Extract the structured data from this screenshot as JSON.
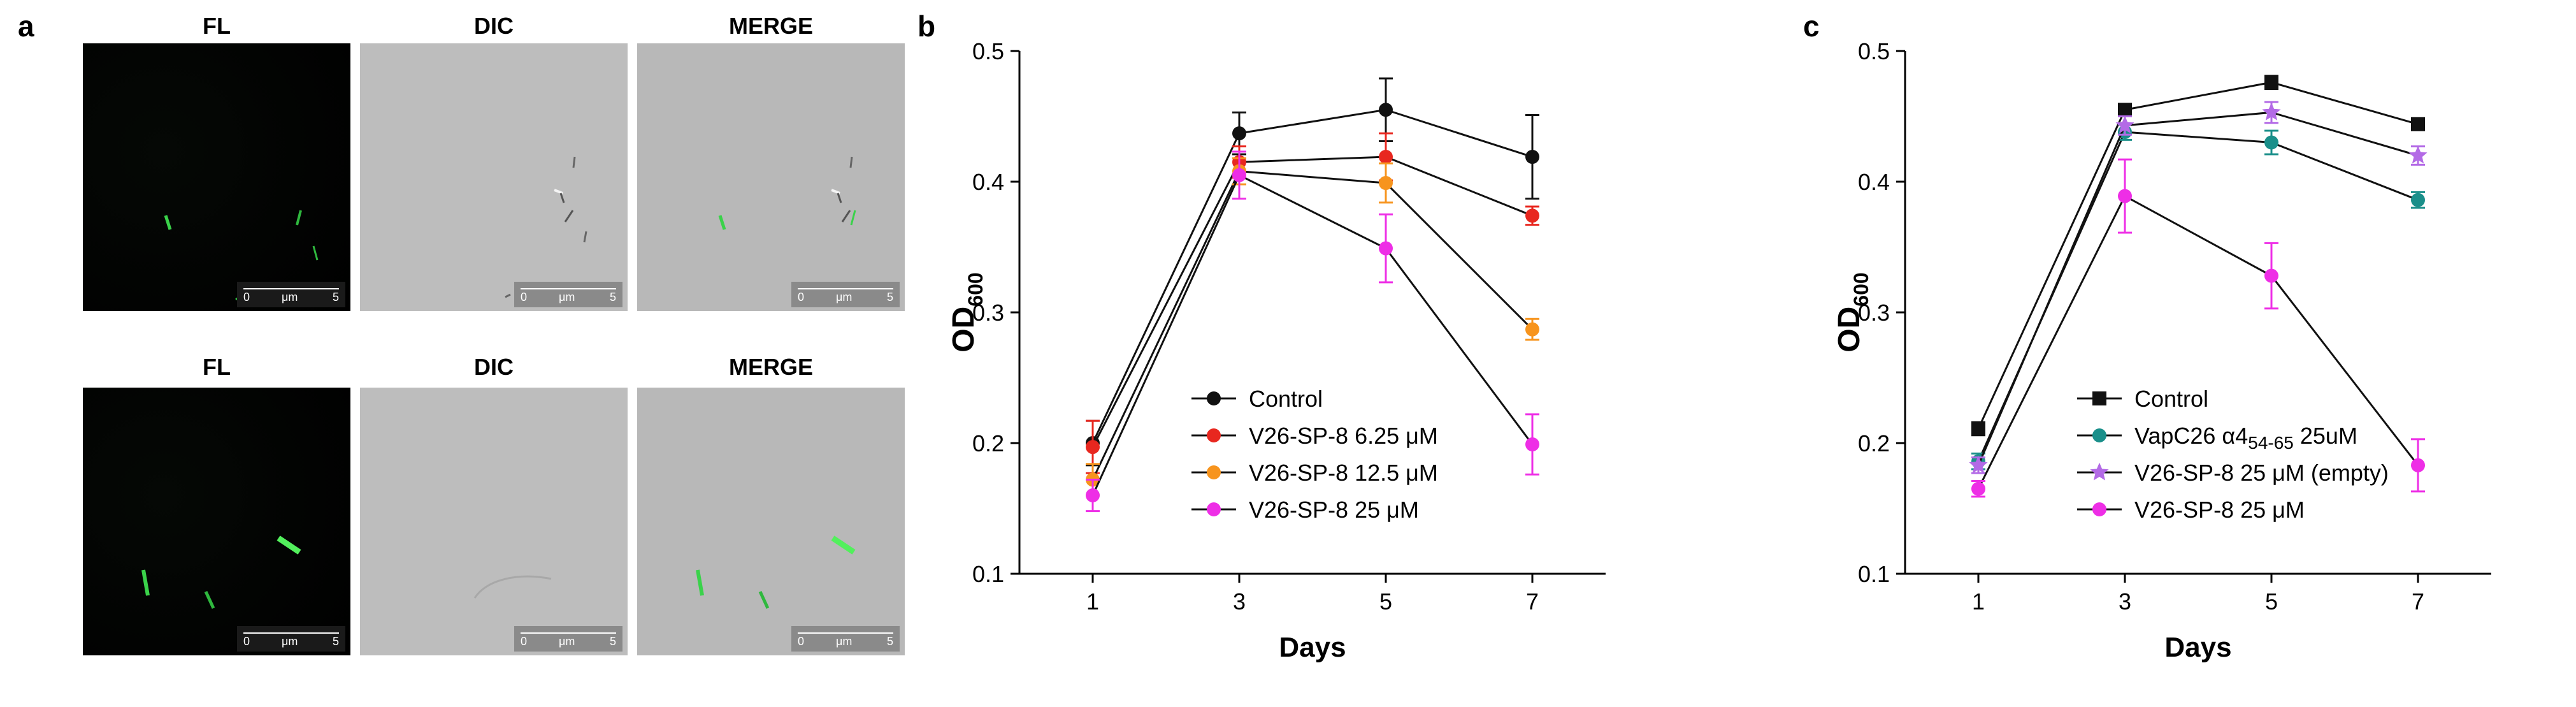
{
  "panel_a": {
    "letter": "a",
    "columns": [
      "FL",
      "DIC",
      "MERGE"
    ],
    "scale_bar": {
      "start": "0",
      "unit": "μm",
      "end": "5"
    }
  },
  "colors": {
    "black": "#111111",
    "red": "#e8271f",
    "orange": "#f7941d",
    "magenta": "#ee2ee6",
    "teal": "#1a8f8a",
    "violet": "#b36ae6",
    "fluorescence_green": "#3ad24a"
  },
  "chart_data": [
    {
      "panel": "b",
      "type": "line",
      "xlabel": "Days",
      "ylabel": "OD",
      "ylabel_subscript": "600",
      "x": [
        1,
        3,
        5,
        7
      ],
      "ylim": [
        0.1,
        0.5
      ],
      "yticks": [
        "0.1",
        "0.2",
        "0.3",
        "0.4",
        "0.5"
      ],
      "xticks": [
        "1",
        "3",
        "5",
        "7"
      ],
      "legend_position": "lower-left-center",
      "series": [
        {
          "name": "Control",
          "color": "#111111",
          "marker": "circle",
          "values": [
            0.2,
            0.437,
            0.455,
            0.419
          ],
          "errors": [
            0.017,
            0.016,
            0.024,
            0.032
          ]
        },
        {
          "name": "V26-SP-8 6.25 μM",
          "color": "#e8271f",
          "marker": "circle",
          "values": [
            0.197,
            0.415,
            0.419,
            0.374
          ],
          "errors": [
            0.02,
            0.012,
            0.018,
            0.007
          ]
        },
        {
          "name": "V26-SP-8 12.5 μM",
          "color": "#f7941d",
          "marker": "circle",
          "values": [
            0.172,
            0.408,
            0.399,
            0.287
          ],
          "errors": [
            0.012,
            0.01,
            0.015,
            0.008
          ]
        },
        {
          "name": "V26-SP-8 25 μM",
          "color": "#ee2ee6",
          "marker": "circle",
          "values": [
            0.16,
            0.405,
            0.349,
            0.199
          ],
          "errors": [
            0.012,
            0.018,
            0.026,
            0.023
          ]
        }
      ]
    },
    {
      "panel": "c",
      "type": "line",
      "xlabel": "Days",
      "ylabel": "OD",
      "ylabel_subscript": "600",
      "x": [
        1,
        3,
        5,
        7
      ],
      "ylim": [
        0.1,
        0.5
      ],
      "yticks": [
        "0.1",
        "0.2",
        "0.3",
        "0.4",
        "0.5"
      ],
      "xticks": [
        "1",
        "3",
        "5",
        "7"
      ],
      "legend_position": "lower-left-center",
      "series": [
        {
          "name": "Control",
          "color": "#111111",
          "marker": "square",
          "values": [
            0.211,
            0.455,
            0.476,
            0.444
          ],
          "errors": [
            0.005,
            0.004,
            0.005,
            0.004
          ]
        },
        {
          "name": "VapC26 α4",
          "name_subscript": "54-65",
          "name_suffix": " 25uM",
          "color": "#1a8f8a",
          "marker": "circle",
          "values": [
            0.186,
            0.438,
            0.43,
            0.386
          ],
          "errors": [
            0.006,
            0.006,
            0.009,
            0.006
          ]
        },
        {
          "name": "V26-SP-8 25 μM (empty)",
          "color": "#b36ae6",
          "marker": "star",
          "values": [
            0.183,
            0.443,
            0.453,
            0.42
          ],
          "errors": [
            0.006,
            0.007,
            0.008,
            0.007
          ]
        },
        {
          "name": "V26-SP-8 25 μM",
          "color": "#ee2ee6",
          "marker": "circle",
          "values": [
            0.165,
            0.389,
            0.328,
            0.183
          ],
          "errors": [
            0.006,
            0.028,
            0.025,
            0.02
          ]
        }
      ]
    }
  ]
}
